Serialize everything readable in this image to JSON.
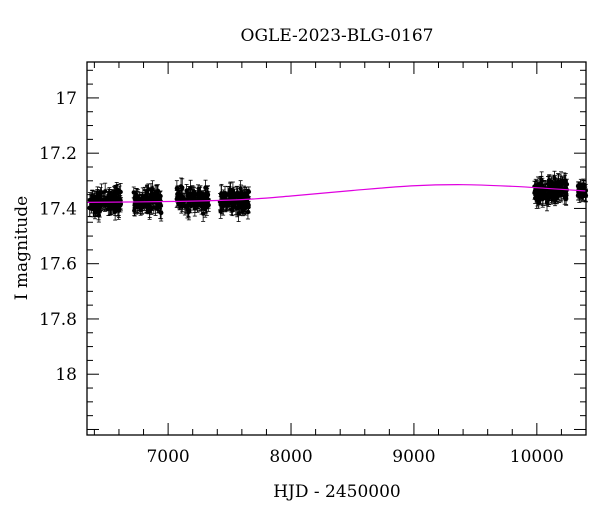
{
  "chart_data": {
    "type": "scatter",
    "title": "OGLE-2023-BLG-0167",
    "xlabel": "HJD - 2450000",
    "ylabel": "I magnitude",
    "xlim": [
      6340,
      10400
    ],
    "ylim": [
      18.22,
      16.87
    ],
    "y_inverted": true,
    "x_ticks": [
      7000,
      8000,
      9000,
      10000
    ],
    "x_tick_labels": [
      "7000",
      "8000",
      "9000",
      "10000"
    ],
    "y_ticks": [
      17,
      17.2,
      17.4,
      17.6,
      17.8,
      18
    ],
    "y_tick_labels": [
      "17",
      "17.2",
      "17.4",
      "17.6",
      "17.8",
      "18"
    ],
    "grid": false,
    "colors": {
      "data": "#000000",
      "model": "#e000e0",
      "axes": "#000000"
    },
    "data_seasons": [
      {
        "x_range": [
          6360,
          6620
        ],
        "mag_mean": 17.375,
        "mag_scatter": 0.02,
        "err": 0.025
      },
      {
        "x_range": [
          6720,
          6950
        ],
        "mag_mean": 17.375,
        "mag_scatter": 0.02,
        "err": 0.025
      },
      {
        "x_range": [
          7070,
          7330
        ],
        "mag_mean": 17.37,
        "mag_scatter": 0.02,
        "err": 0.025
      },
      {
        "x_range": [
          7420,
          7660
        ],
        "mag_mean": 17.37,
        "mag_scatter": 0.02,
        "err": 0.025
      },
      {
        "x_range": [
          9980,
          10250
        ],
        "mag_mean": 17.335,
        "mag_scatter": 0.02,
        "err": 0.025
      },
      {
        "x_range": [
          10330,
          10400
        ],
        "mag_mean": 17.335,
        "mag_scatter": 0.01,
        "err": 0.02
      }
    ],
    "model_curve": [
      {
        "x": 6340,
        "y": 17.378
      },
      {
        "x": 7000,
        "y": 17.375
      },
      {
        "x": 7600,
        "y": 17.368
      },
      {
        "x": 8000,
        "y": 17.355
      },
      {
        "x": 8500,
        "y": 17.335
      },
      {
        "x": 9000,
        "y": 17.318
      },
      {
        "x": 9400,
        "y": 17.314
      },
      {
        "x": 9800,
        "y": 17.32
      },
      {
        "x": 10100,
        "y": 17.328
      },
      {
        "x": 10400,
        "y": 17.337
      }
    ]
  }
}
